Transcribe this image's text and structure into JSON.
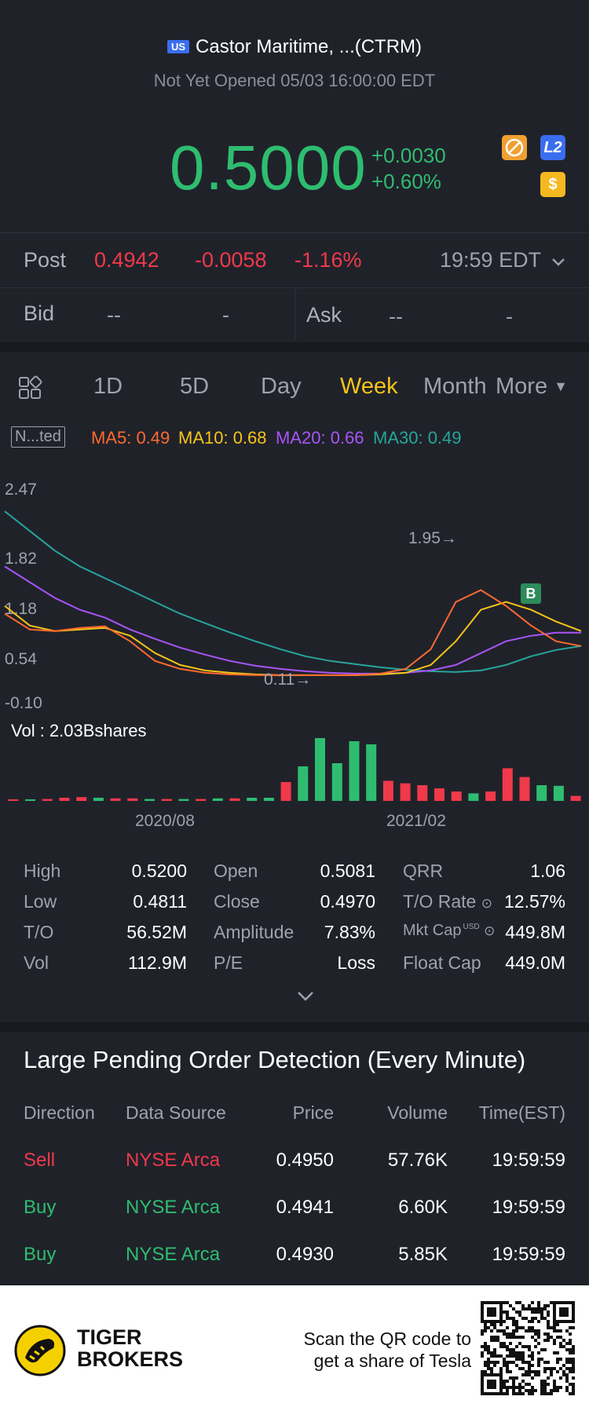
{
  "header": {
    "market_badge": "US",
    "title": "Castor Maritime, ...(CTRM)",
    "status": "Not Yet Opened 05/03 16:00:00 EDT"
  },
  "quote": {
    "price": "0.5000",
    "change": "+0.0030",
    "change_pct": "+0.60%",
    "icon_l2": "L2",
    "icon_dollar": "$"
  },
  "post": {
    "label": "Post",
    "price": "0.4942",
    "change": "-0.0058",
    "change_pct": "-1.16%",
    "time": "19:59 EDT"
  },
  "bidask": {
    "bid_label": "Bid",
    "bid_price": "--",
    "bid_size": "-",
    "ask_label": "Ask",
    "ask_price": "--",
    "ask_size": "-"
  },
  "tabs": {
    "items": [
      "1D",
      "5D",
      "Day",
      "Week",
      "Month"
    ],
    "active": "Week",
    "more": "More"
  },
  "indicators": {
    "adj_label": "N...ted",
    "ma5": "MA5: 0.49",
    "ma10": "MA10: 0.68",
    "ma20": "MA20: 0.66",
    "ma30": "MA30: 0.49",
    "colors": {
      "ma5": "#ff6a2f",
      "ma10": "#f5c518",
      "ma20": "#a855f7",
      "ma30": "#26a69a"
    }
  },
  "chart_data": {
    "type": "candlestick",
    "y_ticks": [
      "2.47",
      "1.82",
      "1.18",
      "0.54",
      "-0.10"
    ],
    "ylim": [
      -0.1,
      2.47
    ],
    "x_ticks": [
      "2020/08",
      "2021/02"
    ],
    "annotations": {
      "high_marker": "1.95→",
      "low_marker": "0.11→",
      "trade_marker": "B"
    },
    "volume_label": "Vol  : 2.03Bshares",
    "ma_series": [
      {
        "name": "MA30",
        "color": "#26a69a",
        "values": [
          2.2,
          1.95,
          1.7,
          1.5,
          1.35,
          1.2,
          1.05,
          0.9,
          0.78,
          0.66,
          0.55,
          0.45,
          0.36,
          0.3,
          0.26,
          0.22,
          0.19,
          0.17,
          0.16,
          0.18,
          0.25,
          0.36,
          0.44,
          0.49
        ]
      },
      {
        "name": "MA20",
        "color": "#a855f7",
        "values": [
          1.5,
          1.3,
          1.1,
          0.95,
          0.85,
          0.7,
          0.58,
          0.47,
          0.38,
          0.3,
          0.24,
          0.2,
          0.17,
          0.15,
          0.14,
          0.14,
          0.15,
          0.18,
          0.25,
          0.4,
          0.55,
          0.62,
          0.66,
          0.66
        ]
      },
      {
        "name": "MA10",
        "color": "#f5c518",
        "values": [
          1.0,
          0.75,
          0.68,
          0.7,
          0.72,
          0.62,
          0.4,
          0.25,
          0.18,
          0.15,
          0.13,
          0.12,
          0.12,
          0.12,
          0.12,
          0.13,
          0.15,
          0.25,
          0.55,
          0.95,
          1.05,
          0.95,
          0.8,
          0.68
        ]
      },
      {
        "name": "MA5",
        "color": "#ff6a2f",
        "values": [
          0.9,
          0.7,
          0.68,
          0.72,
          0.74,
          0.55,
          0.3,
          0.2,
          0.15,
          0.13,
          0.12,
          0.12,
          0.12,
          0.12,
          0.12,
          0.14,
          0.2,
          0.45,
          1.05,
          1.2,
          1.0,
          0.75,
          0.55,
          0.49
        ]
      }
    ],
    "volume_bars": [
      {
        "v": 0.02,
        "up": false
      },
      {
        "v": 0.02,
        "up": true
      },
      {
        "v": 0.03,
        "up": false
      },
      {
        "v": 0.05,
        "up": false
      },
      {
        "v": 0.06,
        "up": false
      },
      {
        "v": 0.05,
        "up": true
      },
      {
        "v": 0.04,
        "up": false
      },
      {
        "v": 0.04,
        "up": false
      },
      {
        "v": 0.03,
        "up": true
      },
      {
        "v": 0.03,
        "up": false
      },
      {
        "v": 0.03,
        "up": true
      },
      {
        "v": 0.03,
        "up": false
      },
      {
        "v": 0.04,
        "up": true
      },
      {
        "v": 0.04,
        "up": false
      },
      {
        "v": 0.05,
        "up": true
      },
      {
        "v": 0.05,
        "up": true
      },
      {
        "v": 0.3,
        "up": false
      },
      {
        "v": 0.55,
        "up": true
      },
      {
        "v": 1.0,
        "up": true
      },
      {
        "v": 0.6,
        "up": true
      },
      {
        "v": 0.95,
        "up": true
      },
      {
        "v": 0.9,
        "up": true
      },
      {
        "v": 0.32,
        "up": false
      },
      {
        "v": 0.28,
        "up": false
      },
      {
        "v": 0.25,
        "up": false
      },
      {
        "v": 0.2,
        "up": false
      },
      {
        "v": 0.15,
        "up": false
      },
      {
        "v": 0.12,
        "up": true
      },
      {
        "v": 0.15,
        "up": false
      },
      {
        "v": 0.52,
        "up": false
      },
      {
        "v": 0.38,
        "up": false
      },
      {
        "v": 0.25,
        "up": true
      },
      {
        "v": 0.24,
        "up": true
      },
      {
        "v": 0.08,
        "up": false
      }
    ]
  },
  "stats": {
    "col1": [
      {
        "label": "High",
        "value": "0.5200"
      },
      {
        "label": "Low",
        "value": "0.4811"
      },
      {
        "label": "T/O",
        "value": "56.52M"
      },
      {
        "label": "Vol",
        "value": "112.9M"
      }
    ],
    "col2": [
      {
        "label": "Open",
        "value": "0.5081"
      },
      {
        "label": "Close",
        "value": "0.4970"
      },
      {
        "label": "Amplitude",
        "value": "7.83%"
      },
      {
        "label": "P/E",
        "value": "Loss"
      }
    ],
    "col3": [
      {
        "label": "QRR",
        "value": "1.06"
      },
      {
        "label": "T/O Rate",
        "value": "12.57%"
      },
      {
        "label": "Mkt Cap",
        "value": "449.8M",
        "sup": "USD"
      },
      {
        "label": "Float Cap",
        "value": "449.0M"
      }
    ]
  },
  "pending": {
    "title": "Large Pending Order Detection (Every Minute)",
    "headers": [
      "Direction",
      "Data Source",
      "Price",
      "Volume",
      "Time(EST)"
    ],
    "rows": [
      {
        "direction": "Sell",
        "source": "NYSE Arca",
        "price": "0.4950",
        "volume": "57.76K",
        "time": "19:59:59",
        "side": "sell"
      },
      {
        "direction": "Buy",
        "source": "NYSE Arca",
        "price": "0.4941",
        "volume": "6.60K",
        "time": "19:59:59",
        "side": "buy"
      },
      {
        "direction": "Buy",
        "source": "NYSE Arca",
        "price": "0.4930",
        "volume": "5.85K",
        "time": "19:59:59",
        "side": "buy"
      }
    ]
  },
  "footer": {
    "brand_line1": "TIGER",
    "brand_line2": "BROKERS",
    "promo_line1": "Scan the QR code to",
    "promo_line2": "get a share of Tesla"
  }
}
